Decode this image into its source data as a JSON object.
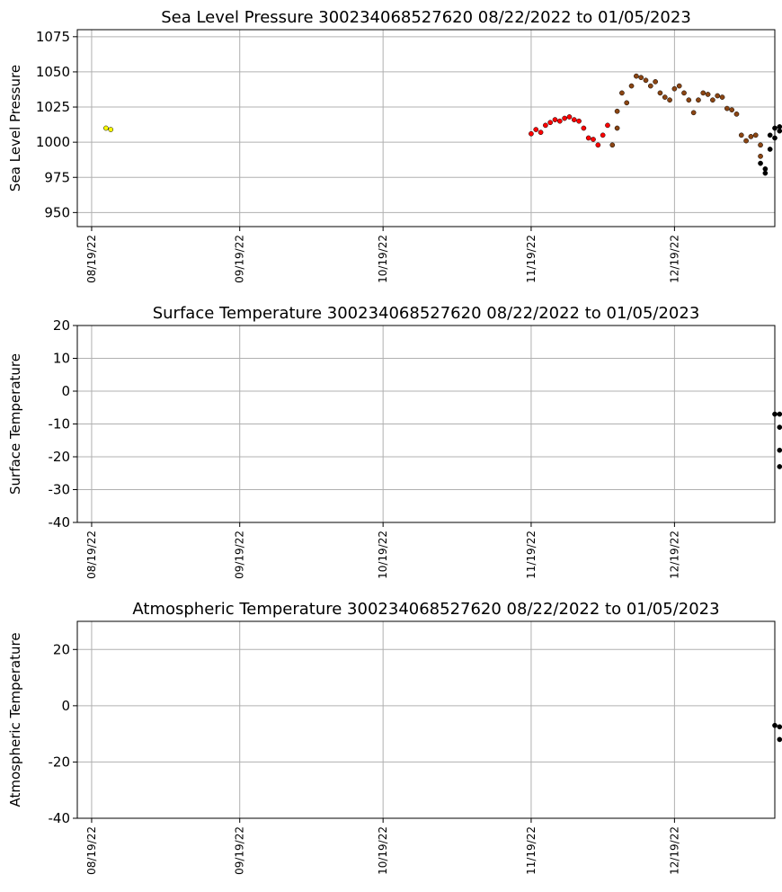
{
  "chart_data": [
    {
      "type": "scatter",
      "title": "Sea Level Pressure 300234068527620  08/22/2022 to 01/05/2023",
      "ylabel": "Sea Level Pressure",
      "xlabel": "",
      "x_axis": "date",
      "xlim": [
        "2022-08-16",
        "2023-01-09"
      ],
      "ylim": [
        940,
        1080
      ],
      "yticks": [
        950,
        975,
        1000,
        1025,
        1050,
        1075
      ],
      "xticks": [
        "2022-08-19",
        "2022-09-19",
        "2022-10-19",
        "2022-11-19",
        "2022-12-19"
      ],
      "xtick_labels": [
        "08/19/22",
        "09/19/22",
        "10/19/22",
        "11/19/22",
        "12/19/22"
      ],
      "grid": true,
      "series": [
        {
          "color": "#ffff00",
          "points": [
            [
              "2022-08-22",
              1010
            ],
            [
              "2022-08-23",
              1009
            ]
          ]
        },
        {
          "color": "#ff0000",
          "points": [
            [
              "2022-11-19",
              1006
            ],
            [
              "2022-11-20",
              1009
            ],
            [
              "2022-11-21",
              1007
            ],
            [
              "2022-11-22",
              1012
            ],
            [
              "2022-11-23",
              1014
            ],
            [
              "2022-11-24",
              1016
            ],
            [
              "2022-11-25",
              1015
            ],
            [
              "2022-11-26",
              1017
            ],
            [
              "2022-11-27",
              1018
            ],
            [
              "2022-11-28",
              1016
            ],
            [
              "2022-11-29",
              1015
            ],
            [
              "2022-11-30",
              1010
            ],
            [
              "2022-12-01",
              1003
            ],
            [
              "2022-12-02",
              1002
            ],
            [
              "2022-12-03",
              998
            ],
            [
              "2022-12-04",
              1005
            ],
            [
              "2022-12-05",
              1012
            ]
          ]
        },
        {
          "color": "#8b4513",
          "points": [
            [
              "2022-12-06",
              998
            ],
            [
              "2022-12-07",
              1010
            ],
            [
              "2022-12-07",
              1022
            ],
            [
              "2022-12-08",
              1035
            ],
            [
              "2022-12-09",
              1028
            ],
            [
              "2022-12-10",
              1040
            ],
            [
              "2022-12-11",
              1047
            ],
            [
              "2022-12-12",
              1046
            ],
            [
              "2022-12-13",
              1044
            ],
            [
              "2022-12-14",
              1040
            ],
            [
              "2022-12-15",
              1043
            ],
            [
              "2022-12-16",
              1035
            ],
            [
              "2022-12-17",
              1032
            ],
            [
              "2022-12-18",
              1030
            ],
            [
              "2022-12-19",
              1038
            ],
            [
              "2022-12-20",
              1040
            ],
            [
              "2022-12-21",
              1035
            ],
            [
              "2022-12-22",
              1030
            ],
            [
              "2022-12-23",
              1021
            ],
            [
              "2022-12-24",
              1030
            ],
            [
              "2022-12-25",
              1035
            ],
            [
              "2022-12-26",
              1034
            ],
            [
              "2022-12-27",
              1030
            ],
            [
              "2022-12-28",
              1033
            ],
            [
              "2022-12-29",
              1032
            ],
            [
              "2022-12-30",
              1024
            ],
            [
              "2022-12-31",
              1023
            ],
            [
              "2023-01-01",
              1020
            ],
            [
              "2023-01-02",
              1005
            ],
            [
              "2023-01-03",
              1001
            ],
            [
              "2023-01-04",
              1004
            ],
            [
              "2023-01-05",
              1005
            ],
            [
              "2023-01-06",
              998
            ],
            [
              "2023-01-06",
              990
            ]
          ]
        },
        {
          "color": "#000000",
          "points": [
            [
              "2023-01-06",
              985
            ],
            [
              "2023-01-07",
              978
            ],
            [
              "2023-01-07",
              981
            ],
            [
              "2023-01-08",
              995
            ],
            [
              "2023-01-08",
              1005
            ],
            [
              "2023-01-09",
              1010
            ],
            [
              "2023-01-09",
              1003
            ],
            [
              "2023-01-10",
              1008
            ],
            [
              "2023-01-10",
              1011
            ]
          ]
        }
      ]
    },
    {
      "type": "scatter",
      "title": "Surface Temperature 300234068527620  08/22/2022 to 01/05/2023",
      "ylabel": "Surface Temperature",
      "xlabel": "",
      "x_axis": "date",
      "xlim": [
        "2022-08-16",
        "2023-01-09"
      ],
      "ylim": [
        -40,
        20
      ],
      "yticks": [
        -40,
        -30,
        -20,
        -10,
        0,
        10,
        20
      ],
      "xticks": [
        "2022-08-19",
        "2022-09-19",
        "2022-10-19",
        "2022-11-19",
        "2022-12-19"
      ],
      "xtick_labels": [
        "08/19/22",
        "09/19/22",
        "10/19/22",
        "11/19/22",
        "12/19/22"
      ],
      "grid": true,
      "series": [
        {
          "color": "#000000",
          "points": [
            [
              "2023-01-09",
              -7
            ],
            [
              "2023-01-10",
              -7
            ],
            [
              "2023-01-10",
              -11
            ],
            [
              "2023-01-10",
              -18
            ],
            [
              "2023-01-10",
              -23
            ]
          ]
        }
      ]
    },
    {
      "type": "scatter",
      "title": "Atmospheric Temperature 300234068527620  08/22/2022 to 01/05/2023",
      "ylabel": "Atmospheric Temperature",
      "xlabel": "",
      "x_axis": "date",
      "xlim": [
        "2022-08-16",
        "2023-01-09"
      ],
      "ylim": [
        -40,
        30
      ],
      "yticks": [
        -40,
        -20,
        0,
        20
      ],
      "xticks": [
        "2022-08-19",
        "2022-09-19",
        "2022-10-19",
        "2022-11-19",
        "2022-12-19"
      ],
      "xtick_labels": [
        "08/19/22",
        "09/19/22",
        "10/19/22",
        "11/19/22",
        "12/19/22"
      ],
      "grid": true,
      "series": [
        {
          "color": "#000000",
          "points": [
            [
              "2023-01-09",
              -7
            ],
            [
              "2023-01-10",
              -7.5
            ],
            [
              "2023-01-10",
              -12
            ]
          ]
        }
      ]
    }
  ]
}
